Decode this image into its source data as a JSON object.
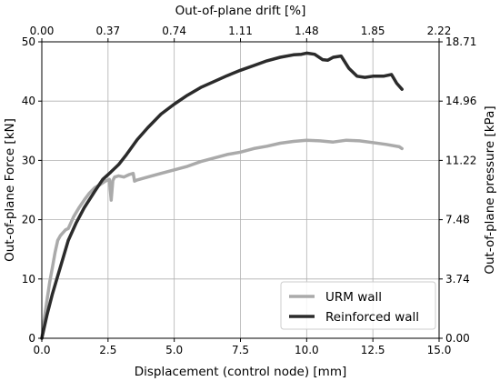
{
  "chart_data": {
    "type": "line",
    "xlabel": "Displacement (control node) [mm]",
    "ylabel": "Out-of-plane Force [kN]",
    "x2label": "Out-of-plane drift [%]",
    "y2label": "Out-of-plane pressure [kPa]",
    "xlim": [
      0,
      15
    ],
    "ylim": [
      0,
      50
    ],
    "xticks": [
      "0.0",
      "2.5",
      "5.0",
      "7.5",
      "10.0",
      "12.5",
      "15.0"
    ],
    "yticks": [
      "0",
      "10",
      "20",
      "30",
      "40",
      "50"
    ],
    "x2ticks": [
      "0.00",
      "0.37",
      "0.74",
      "1.11",
      "1.48",
      "1.85",
      "2.22"
    ],
    "y2ticks": [
      "0.00",
      "3.74",
      "7.48",
      "11.22",
      "14.96",
      "18.71"
    ],
    "grid": true,
    "legend_position": "lower-right",
    "colors": {
      "urm": "#aaaaaa",
      "reinforced": "#2b2b2b"
    },
    "series": [
      {
        "name": "URM wall",
        "x": [
          0,
          0.1,
          0.2,
          0.3,
          0.4,
          0.5,
          0.6,
          0.7,
          0.8,
          0.9,
          1.0,
          1.2,
          1.4,
          1.6,
          1.8,
          2.0,
          2.2,
          2.4,
          2.55,
          2.62,
          2.68,
          2.75,
          2.9,
          3.1,
          3.3,
          3.45,
          3.5,
          3.6,
          4.0,
          4.5,
          5.0,
          5.5,
          6.0,
          6.5,
          7.0,
          7.5,
          8.0,
          8.5,
          9.0,
          9.5,
          10.0,
          10.5,
          11.0,
          11.5,
          12.0,
          12.5,
          13.0,
          13.5,
          13.6
        ],
        "values": [
          0,
          3.5,
          6.5,
          9.5,
          12.0,
          14.5,
          16.5,
          17.3,
          17.8,
          18.3,
          18.5,
          20.5,
          22.0,
          23.3,
          24.5,
          25.4,
          25.9,
          26.5,
          26.8,
          23.3,
          26.6,
          27.2,
          27.4,
          27.2,
          27.6,
          27.8,
          26.5,
          26.7,
          27.2,
          27.8,
          28.4,
          29.0,
          29.8,
          30.4,
          31.0,
          31.4,
          32.0,
          32.4,
          32.9,
          33.2,
          33.4,
          33.3,
          33.1,
          33.4,
          33.3,
          33.0,
          32.7,
          32.3,
          32.0
        ]
      },
      {
        "name": "Reinforced wall",
        "x": [
          0,
          0.2,
          0.4,
          0.6,
          0.8,
          1.0,
          1.3,
          1.6,
          2.0,
          2.3,
          2.6,
          2.9,
          3.2,
          3.6,
          4.0,
          4.5,
          5.0,
          5.5,
          6.0,
          6.5,
          7.0,
          7.5,
          8.0,
          8.5,
          9.0,
          9.5,
          9.8,
          10.0,
          10.3,
          10.6,
          10.8,
          11.0,
          11.3,
          11.6,
          11.9,
          12.2,
          12.5,
          12.9,
          13.2,
          13.4,
          13.6
        ],
        "values": [
          0,
          4.0,
          7.5,
          10.5,
          13.5,
          16.5,
          19.5,
          22.0,
          24.8,
          26.8,
          28.0,
          29.3,
          31.0,
          33.5,
          35.5,
          37.8,
          39.5,
          41.0,
          42.3,
          43.3,
          44.3,
          45.2,
          46.0,
          46.8,
          47.4,
          47.8,
          47.9,
          48.1,
          47.9,
          47.0,
          46.9,
          47.4,
          47.6,
          45.5,
          44.2,
          44.0,
          44.2,
          44.2,
          44.5,
          43.0,
          42.0
        ]
      }
    ]
  }
}
